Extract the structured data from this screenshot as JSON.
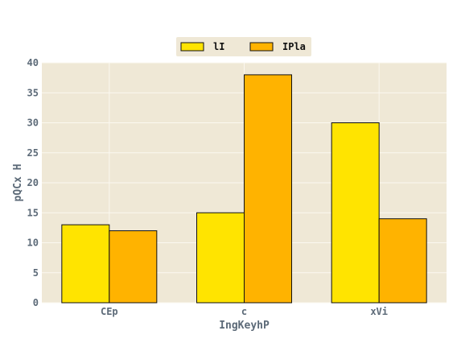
{
  "chart_data": {
    "type": "bar",
    "title": "",
    "xlabel": "IngKeyhP",
    "ylabel": "pQCx H",
    "categories": [
      "CEp",
      "c",
      "xVi"
    ],
    "series": [
      {
        "name": "lI",
        "values": [
          13,
          15,
          30
        ],
        "color": "#ffe400"
      },
      {
        "name": "IPla",
        "values": [
          12,
          38,
          14
        ],
        "color": "#ffb300"
      }
    ],
    "ylim": [
      0,
      40
    ],
    "yticks": [
      0,
      5,
      10,
      15,
      20,
      25,
      30,
      35,
      40
    ],
    "grid": true,
    "legend_position": "top-center"
  },
  "colors": {
    "plot_background": "#efe8d6",
    "grid": "#fbf8f0",
    "tick_text": "#5c6a78",
    "bar_edge": "#111111"
  }
}
